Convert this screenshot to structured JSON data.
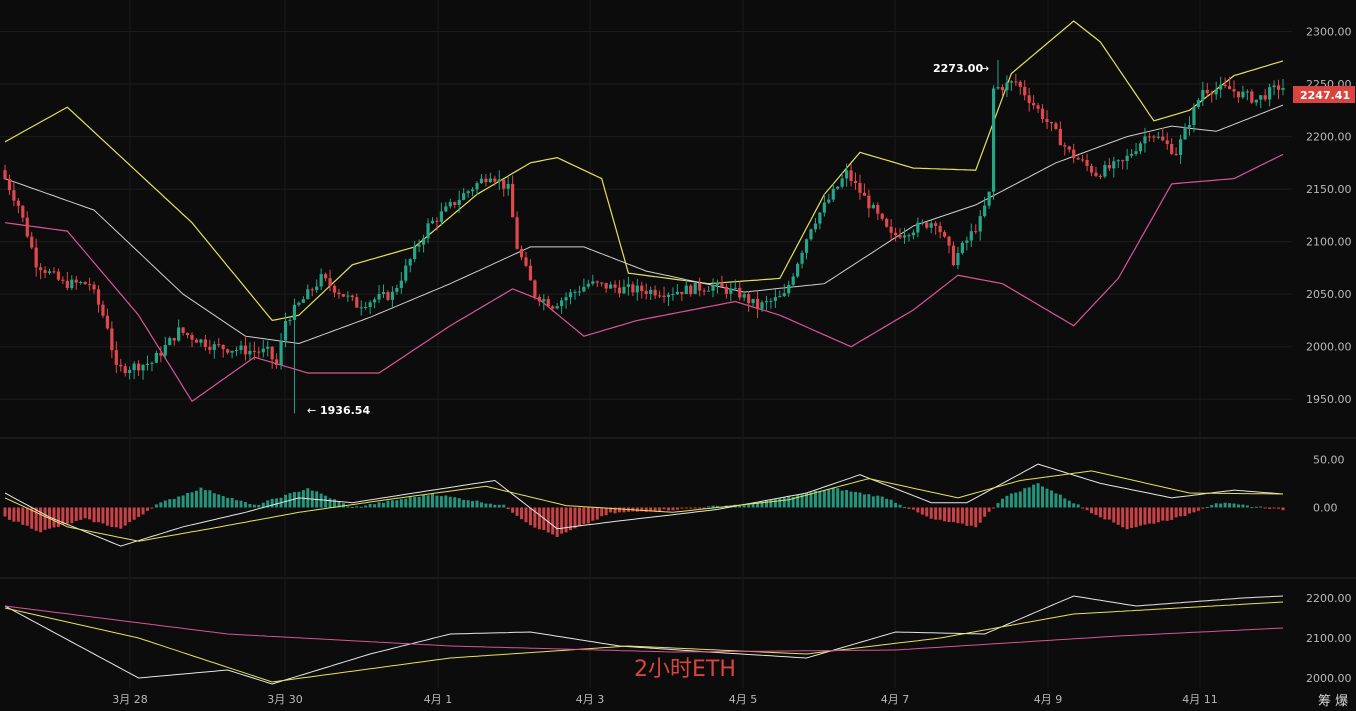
{
  "chart_data": {
    "type": "candlestick",
    "title": "2小时ETH",
    "brand": "筹 爆",
    "x_labels": [
      "3月 28",
      "3月 30",
      "4月 1",
      "4月 3",
      "4月 5",
      "4月 7",
      "4月 9",
      "4月 11"
    ],
    "price_axis": {
      "ticks": [
        "2300.00",
        "2250.00",
        "2200.00",
        "2150.00",
        "2100.00",
        "2050.00",
        "2000.00",
        "1950.00"
      ],
      "ylim": [
        1915,
        2330
      ]
    },
    "last_price": "2247.41",
    "annotations": {
      "high": "2273.00",
      "low": "1936.54"
    },
    "ohlc_keypoints": [
      [
        0,
        2168
      ],
      [
        4,
        2135
      ],
      [
        8,
        2080
      ],
      [
        14,
        2060
      ],
      [
        20,
        2060
      ],
      [
        24,
        2020
      ],
      [
        26,
        1978
      ],
      [
        34,
        1985
      ],
      [
        40,
        2015
      ],
      [
        48,
        2000
      ],
      [
        56,
        1996
      ],
      [
        60,
        1995
      ],
      [
        62,
        1982
      ],
      [
        64,
        2025
      ],
      [
        72,
        2065
      ],
      [
        80,
        2040
      ],
      [
        88,
        2050
      ],
      [
        96,
        2115
      ],
      [
        104,
        2145
      ],
      [
        110,
        2165
      ],
      [
        114,
        2150
      ],
      [
        116,
        2095
      ],
      [
        120,
        2050
      ],
      [
        124,
        2040
      ],
      [
        132,
        2060
      ],
      [
        140,
        2055
      ],
      [
        150,
        2052
      ],
      [
        160,
        2058
      ],
      [
        166,
        2050
      ],
      [
        170,
        2038
      ],
      [
        176,
        2048
      ],
      [
        182,
        2115
      ],
      [
        190,
        2165
      ],
      [
        196,
        2130
      ],
      [
        200,
        2105
      ],
      [
        210,
        2120
      ],
      [
        214,
        2082
      ],
      [
        220,
        2120
      ],
      [
        222,
        2145
      ],
      [
        223,
        2245
      ],
      [
        228,
        2252
      ],
      [
        234,
        2220
      ],
      [
        240,
        2185
      ],
      [
        246,
        2165
      ],
      [
        252,
        2175
      ],
      [
        258,
        2205
      ],
      [
        264,
        2185
      ],
      [
        270,
        2245
      ],
      [
        276,
        2245
      ],
      [
        282,
        2235
      ],
      [
        287,
        2247
      ]
    ],
    "bollinger": {
      "upper": [
        [
          0,
          2195
        ],
        [
          14,
          2228
        ],
        [
          42,
          2118
        ],
        [
          60,
          2025
        ],
        [
          66,
          2030
        ],
        [
          78,
          2078
        ],
        [
          92,
          2095
        ],
        [
          106,
          2145
        ],
        [
          118,
          2175
        ],
        [
          124,
          2180
        ],
        [
          134,
          2160
        ],
        [
          140,
          2070
        ],
        [
          158,
          2060
        ],
        [
          174,
          2065
        ],
        [
          184,
          2145
        ],
        [
          192,
          2185
        ],
        [
          204,
          2170
        ],
        [
          218,
          2168
        ],
        [
          226,
          2260
        ],
        [
          240,
          2310
        ],
        [
          246,
          2290
        ],
        [
          258,
          2215
        ],
        [
          266,
          2225
        ],
        [
          276,
          2258
        ],
        [
          287,
          2272
        ]
      ],
      "middle": [
        [
          0,
          2160
        ],
        [
          20,
          2130
        ],
        [
          40,
          2050
        ],
        [
          54,
          2010
        ],
        [
          66,
          2003
        ],
        [
          82,
          2028
        ],
        [
          100,
          2060
        ],
        [
          118,
          2095
        ],
        [
          130,
          2095
        ],
        [
          144,
          2072
        ],
        [
          166,
          2052
        ],
        [
          184,
          2060
        ],
        [
          204,
          2115
        ],
        [
          218,
          2135
        ],
        [
          236,
          2175
        ],
        [
          252,
          2200
        ],
        [
          262,
          2210
        ],
        [
          272,
          2205
        ],
        [
          287,
          2230
        ]
      ],
      "lower": [
        [
          0,
          2118
        ],
        [
          14,
          2110
        ],
        [
          30,
          2030
        ],
        [
          42,
          1948
        ],
        [
          56,
          1990
        ],
        [
          68,
          1975
        ],
        [
          84,
          1975
        ],
        [
          100,
          2020
        ],
        [
          114,
          2055
        ],
        [
          120,
          2045
        ],
        [
          130,
          2010
        ],
        [
          142,
          2025
        ],
        [
          164,
          2043
        ],
        [
          174,
          2030
        ],
        [
          190,
          2000
        ],
        [
          204,
          2035
        ],
        [
          214,
          2068
        ],
        [
          224,
          2060
        ],
        [
          240,
          2020
        ],
        [
          250,
          2065
        ],
        [
          262,
          2155
        ],
        [
          276,
          2160
        ],
        [
          287,
          2183
        ]
      ]
    },
    "macd": {
      "axis_ticks": [
        "50.00",
        "0.00"
      ],
      "ylim": [
        -70,
        70
      ],
      "histogram": [
        [
          0,
          -10
        ],
        [
          8,
          -25
        ],
        [
          18,
          -12
        ],
        [
          26,
          -22
        ],
        [
          34,
          3
        ],
        [
          44,
          20
        ],
        [
          56,
          2
        ],
        [
          68,
          20
        ],
        [
          78,
          0
        ],
        [
          96,
          14
        ],
        [
          112,
          2
        ],
        [
          118,
          -18
        ],
        [
          124,
          -30
        ],
        [
          136,
          -6
        ],
        [
          150,
          -2
        ],
        [
          168,
          4
        ],
        [
          186,
          20
        ],
        [
          198,
          10
        ],
        [
          208,
          -12
        ],
        [
          218,
          -20
        ],
        [
          224,
          10
        ],
        [
          232,
          25
        ],
        [
          244,
          -5
        ],
        [
          252,
          -22
        ],
        [
          264,
          -10
        ],
        [
          272,
          5
        ],
        [
          287,
          -2
        ]
      ],
      "dif": [
        [
          0,
          15
        ],
        [
          10,
          -10
        ],
        [
          26,
          -40
        ],
        [
          40,
          -20
        ],
        [
          54,
          -5
        ],
        [
          66,
          10
        ],
        [
          78,
          5
        ],
        [
          96,
          18
        ],
        [
          110,
          28
        ],
        [
          124,
          -22
        ],
        [
          136,
          -15
        ],
        [
          160,
          -2
        ],
        [
          180,
          15
        ],
        [
          192,
          34
        ],
        [
          208,
          5
        ],
        [
          216,
          5
        ],
        [
          232,
          45
        ],
        [
          246,
          25
        ],
        [
          262,
          10
        ],
        [
          276,
          18
        ],
        [
          287,
          14
        ]
      ],
      "dea": [
        [
          0,
          10
        ],
        [
          14,
          -20
        ],
        [
          30,
          -35
        ],
        [
          46,
          -22
        ],
        [
          66,
          -5
        ],
        [
          84,
          7
        ],
        [
          108,
          22
        ],
        [
          126,
          2
        ],
        [
          150,
          -5
        ],
        [
          176,
          8
        ],
        [
          194,
          30
        ],
        [
          214,
          10
        ],
        [
          228,
          28
        ],
        [
          244,
          38
        ],
        [
          266,
          15
        ],
        [
          287,
          14
        ]
      ]
    },
    "ma_panel": {
      "axis_ticks": [
        "2200.00",
        "2100.00",
        "2000.00"
      ],
      "ylim": [
        1975,
        2245
      ],
      "white": [
        [
          0,
          2180
        ],
        [
          10,
          2120
        ],
        [
          30,
          2000
        ],
        [
          50,
          2020
        ],
        [
          60,
          1985
        ],
        [
          82,
          2060
        ],
        [
          100,
          2110
        ],
        [
          118,
          2115
        ],
        [
          138,
          2080
        ],
        [
          158,
          2065
        ],
        [
          180,
          2050
        ],
        [
          200,
          2115
        ],
        [
          220,
          2110
        ],
        [
          240,
          2205
        ],
        [
          254,
          2180
        ],
        [
          278,
          2200
        ],
        [
          287,
          2205
        ]
      ],
      "yellow": [
        [
          0,
          2175
        ],
        [
          30,
          2100
        ],
        [
          60,
          1990
        ],
        [
          100,
          2050
        ],
        [
          140,
          2080
        ],
        [
          180,
          2060
        ],
        [
          210,
          2100
        ],
        [
          240,
          2160
        ],
        [
          287,
          2190
        ]
      ],
      "magenta": [
        [
          0,
          2180
        ],
        [
          50,
          2110
        ],
        [
          100,
          2080
        ],
        [
          150,
          2065
        ],
        [
          200,
          2070
        ],
        [
          250,
          2105
        ],
        [
          287,
          2125
        ]
      ]
    }
  }
}
